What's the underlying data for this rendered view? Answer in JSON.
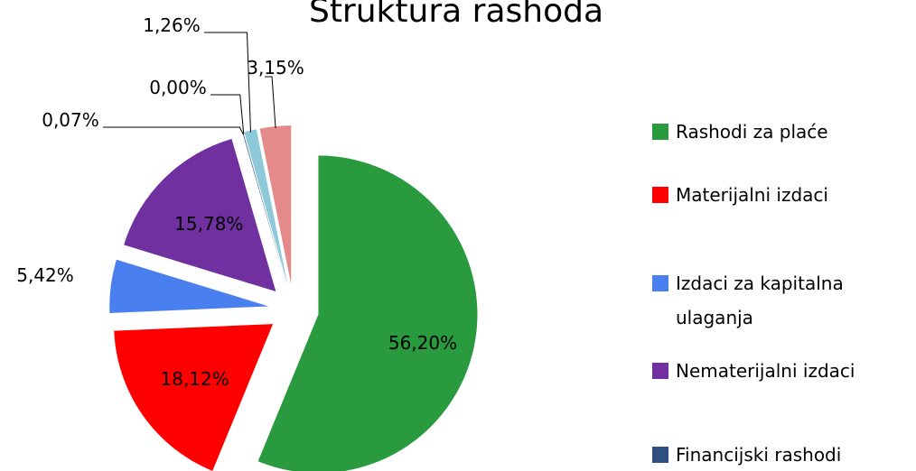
{
  "chart_data": {
    "type": "pie",
    "title": "Struktura rashoda",
    "categories": [
      "Rashodi za plaće",
      "Materijalni izdaci",
      "Izdaci za kapitalna ulaganja",
      "Nematerijalni izdaci",
      "Financijski rashodi",
      null,
      null,
      null
    ],
    "values": [
      56.2,
      18.12,
      5.42,
      15.78,
      0.07,
      0.0,
      1.26,
      3.15
    ],
    "value_labels": [
      "56,20%",
      "18,12%",
      "5,42%",
      "15,78%",
      "0,07%",
      "0,00%",
      "1,26%",
      "3,15%"
    ],
    "colors": [
      "#2a9a3e",
      "#ff0000",
      "#4a7fef",
      "#7030a0",
      "#2e4f7f",
      "#c8d84a",
      "#8ec9d9",
      "#e58a8a"
    ],
    "legend": "right"
  }
}
